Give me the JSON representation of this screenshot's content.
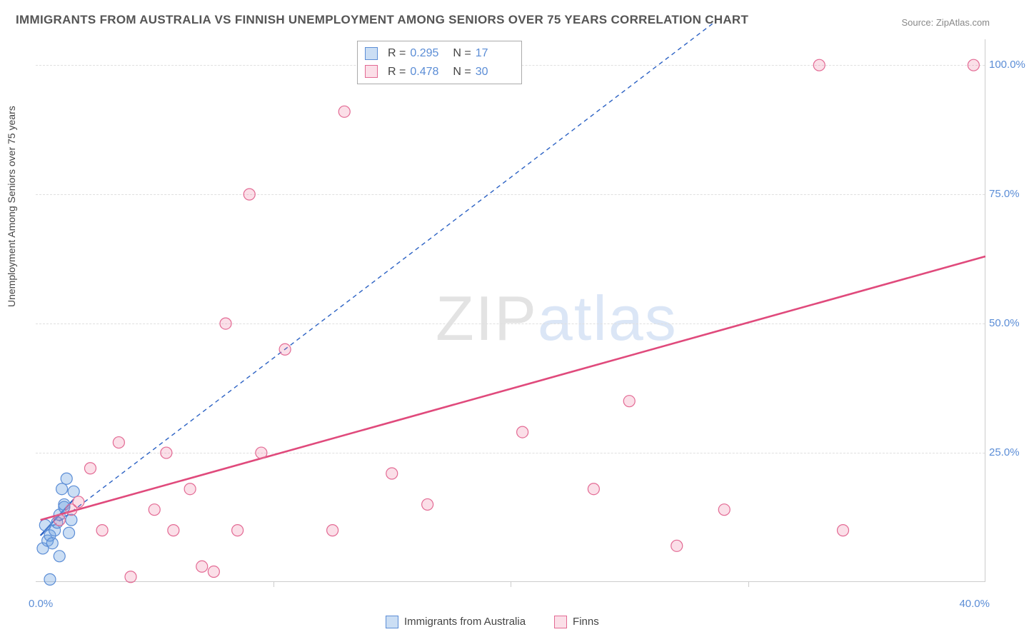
{
  "title": "IMMIGRANTS FROM AUSTRALIA VS FINNISH UNEMPLOYMENT AMONG SENIORS OVER 75 YEARS CORRELATION CHART",
  "source": "Source: ZipAtlas.com",
  "y_axis_label": "Unemployment Among Seniors over 75 years",
  "watermark_part1": "ZIP",
  "watermark_part2": "atlas",
  "chart": {
    "type": "scatter",
    "background_color": "#ffffff",
    "grid_color": "#e0e0e0",
    "axis_color": "#cccccc",
    "tick_label_color": "#5b8dd6",
    "tick_fontsize": 15,
    "x_range": [
      0,
      40
    ],
    "y_range": [
      0,
      105
    ],
    "y_ticks": [
      25,
      50,
      75,
      100
    ],
    "y_tick_labels": [
      "25.0%",
      "50.0%",
      "75.0%",
      "100.0%"
    ],
    "x_ticks": [
      0,
      10,
      20,
      30,
      40
    ],
    "x_origin_label": "0.0%",
    "x_max_label": "40.0%",
    "marker_radius": 8,
    "marker_stroke_width": 1.2,
    "series": [
      {
        "name": "Immigrants from Australia",
        "color_fill": "rgba(107,160,224,0.35)",
        "color_stroke": "#5b8dd6",
        "trend_color": "#2c62c4",
        "trend_dash": "6,5",
        "trend_width": 1.4,
        "trend_solid_width": 2.2,
        "R": "0.295",
        "N": "17",
        "points": [
          [
            0.3,
            6.5
          ],
          [
            0.5,
            8.0
          ],
          [
            0.6,
            9.0
          ],
          [
            0.7,
            7.5
          ],
          [
            0.8,
            10.0
          ],
          [
            0.9,
            11.5
          ],
          [
            1.0,
            13.0
          ],
          [
            1.1,
            18.0
          ],
          [
            1.2,
            15.0
          ],
          [
            1.3,
            20.0
          ],
          [
            1.4,
            9.5
          ],
          [
            1.5,
            12.0
          ],
          [
            1.6,
            17.5
          ],
          [
            1.0,
            5.0
          ],
          [
            0.6,
            0.5
          ],
          [
            0.4,
            11.0
          ],
          [
            1.2,
            14.5
          ]
        ],
        "trend_solid": [
          [
            0.2,
            9.0
          ],
          [
            1.6,
            16.0
          ]
        ],
        "trend_dashed": [
          [
            0.2,
            9.0
          ],
          [
            28.5,
            108.0
          ]
        ]
      },
      {
        "name": "Finns",
        "color_fill": "rgba(235,110,150,0.22)",
        "color_stroke": "#e36a94",
        "trend_color": "#e04a7c",
        "trend_dash": "none",
        "trend_width": 2.6,
        "R": "0.478",
        "N": "30",
        "points": [
          [
            1.5,
            14.0
          ],
          [
            2.3,
            22.0
          ],
          [
            2.8,
            10.0
          ],
          [
            3.5,
            27.0
          ],
          [
            4.0,
            1.0
          ],
          [
            5.0,
            14.0
          ],
          [
            5.5,
            25.0
          ],
          [
            5.8,
            10.0
          ],
          [
            6.5,
            18.0
          ],
          [
            7.0,
            3.0
          ],
          [
            7.5,
            2.0
          ],
          [
            8.0,
            50.0
          ],
          [
            8.5,
            10.0
          ],
          [
            9.0,
            75.0
          ],
          [
            9.5,
            25.0
          ],
          [
            10.5,
            45.0
          ],
          [
            12.5,
            10.0
          ],
          [
            13.0,
            91.0
          ],
          [
            15.0,
            21.0
          ],
          [
            16.5,
            15.0
          ],
          [
            20.5,
            29.0
          ],
          [
            23.5,
            18.0
          ],
          [
            25.0,
            35.0
          ],
          [
            27.0,
            7.0
          ],
          [
            29.0,
            14.0
          ],
          [
            33.0,
            100.0
          ],
          [
            34.0,
            10.0
          ],
          [
            39.5,
            100.0
          ],
          [
            1.8,
            15.5
          ],
          [
            1.0,
            12.0
          ]
        ],
        "trend_solid": [
          [
            0.2,
            12.0
          ],
          [
            40.0,
            63.0
          ]
        ]
      }
    ]
  },
  "legend_x": {
    "items": [
      {
        "label": "Immigrants from Australia",
        "fill": "rgba(107,160,224,0.35)",
        "stroke": "#5b8dd6"
      },
      {
        "label": "Finns",
        "fill": "rgba(235,110,150,0.22)",
        "stroke": "#e36a94"
      }
    ]
  },
  "legend_top": {
    "R_label": "R =",
    "N_label": "N ="
  }
}
